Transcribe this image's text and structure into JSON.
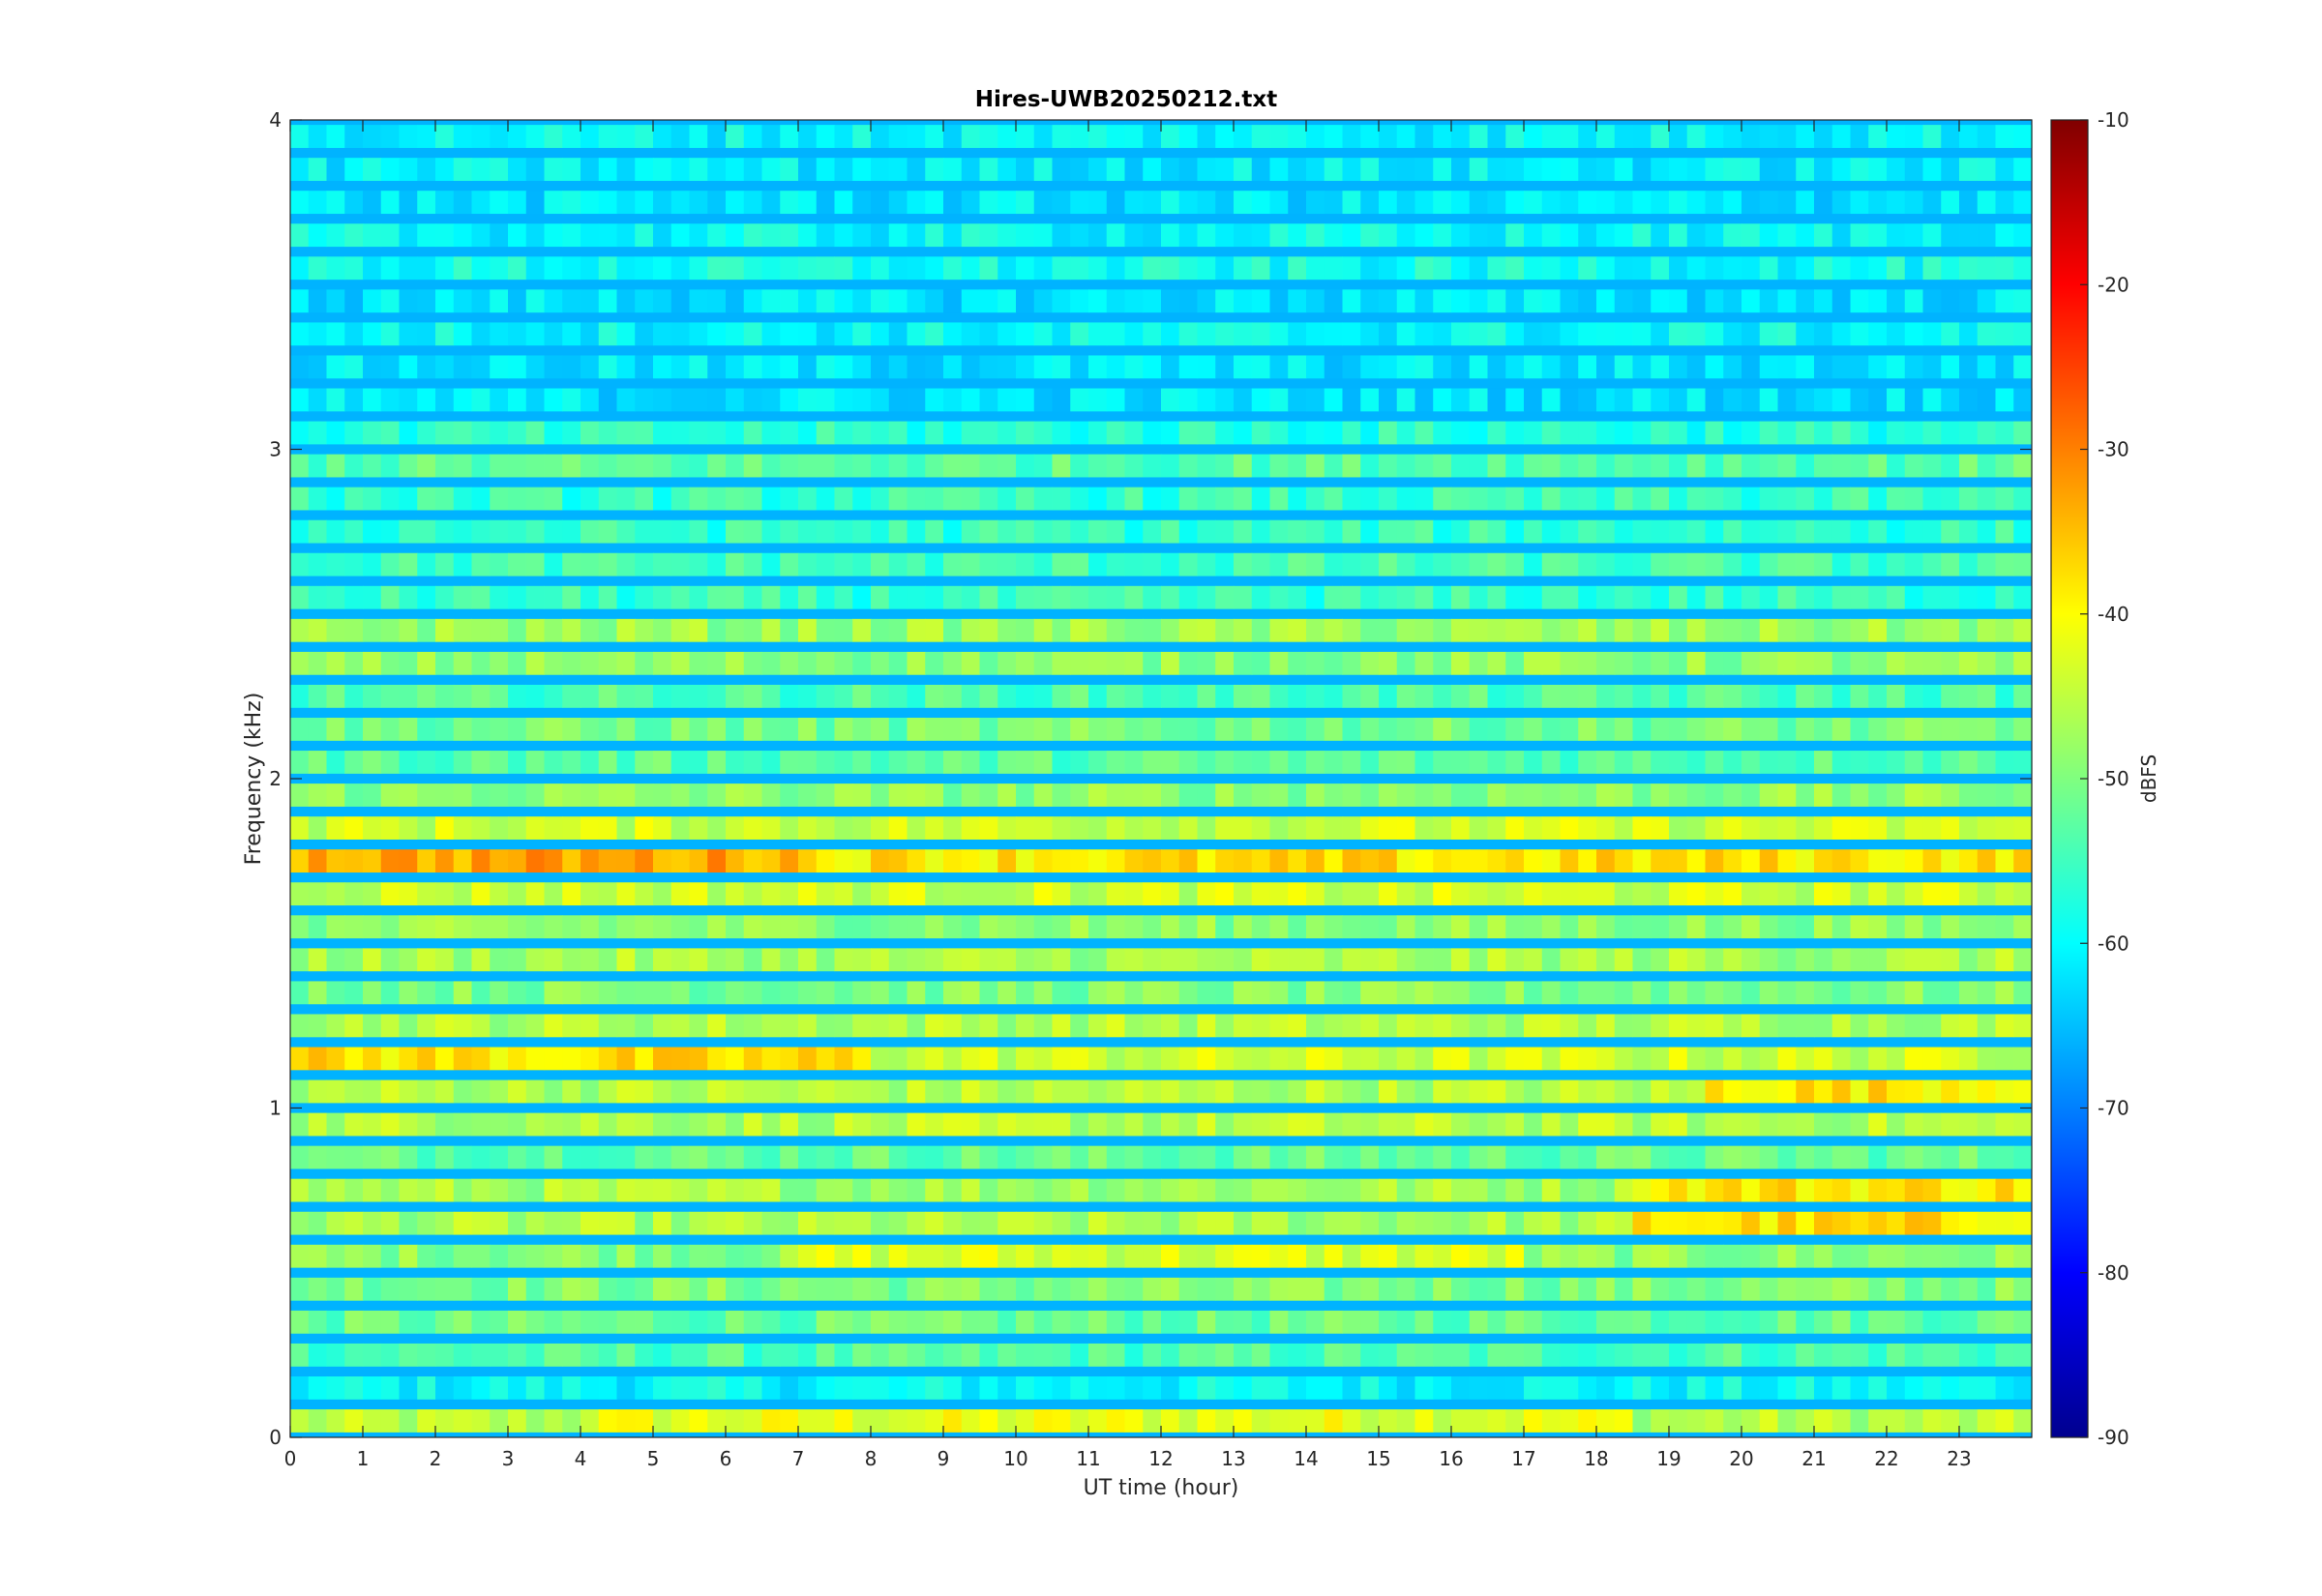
{
  "chart_data": {
    "type": "heatmap",
    "title": "Hires-UWB20250212.txt",
    "xlabel": "UT time (hour)",
    "ylabel": "Frequency (kHz)",
    "xlim": [
      0,
      24
    ],
    "ylim": [
      0,
      4
    ],
    "x_ticks": [
      0,
      1,
      2,
      3,
      4,
      5,
      6,
      7,
      8,
      9,
      10,
      11,
      12,
      13,
      14,
      15,
      16,
      17,
      18,
      19,
      20,
      21,
      22,
      23
    ],
    "y_ticks": [
      0,
      1,
      2,
      3,
      4
    ],
    "colorbar": {
      "label": "dBFS",
      "colormap": "jet",
      "range": [
        -90,
        -10
      ],
      "ticks": [
        -10,
        -20,
        -30,
        -40,
        -50,
        -60,
        -70,
        -80,
        -90
      ]
    },
    "bands_khz": [
      {
        "f": 0.05,
        "level": -46,
        "t_start": 4,
        "t_end": 18.5,
        "peak": -42
      },
      {
        "f": 0.15,
        "level": -60
      },
      {
        "f": 0.25,
        "level": -54
      },
      {
        "f": 0.35,
        "level": -52
      },
      {
        "f": 0.45,
        "level": -50
      },
      {
        "f": 0.55,
        "level": -49,
        "t_start": 7,
        "t_end": 17,
        "peak": -43
      },
      {
        "f": 0.65,
        "level": -47,
        "t_start": 18.5,
        "t_end": 24,
        "peak": -38
      },
      {
        "f": 0.75,
        "level": -47,
        "t_start": 18.5,
        "t_end": 24,
        "peak": -38
      },
      {
        "f": 0.85,
        "level": -52
      },
      {
        "f": 0.95,
        "level": -46
      },
      {
        "f": 1.05,
        "level": -46,
        "t_start": 19.5,
        "t_end": 24,
        "peak": -38
      },
      {
        "f": 1.15,
        "level": -44,
        "t_start": 0,
        "t_end": 8,
        "peak": -38
      },
      {
        "f": 1.25,
        "level": -46
      },
      {
        "f": 1.35,
        "level": -50
      },
      {
        "f": 1.45,
        "level": -47
      },
      {
        "f": 1.55,
        "level": -49
      },
      {
        "f": 1.65,
        "level": -44
      },
      {
        "f": 1.75,
        "level": -38,
        "t_start": 0,
        "t_end": 7,
        "peak": -33
      },
      {
        "f": 1.85,
        "level": -44
      },
      {
        "f": 1.95,
        "level": -49
      },
      {
        "f": 2.05,
        "level": -53
      },
      {
        "f": 2.15,
        "level": -51
      },
      {
        "f": 2.25,
        "level": -54
      },
      {
        "f": 2.35,
        "level": -49
      },
      {
        "f": 2.45,
        "level": -48
      },
      {
        "f": 2.55,
        "level": -56
      },
      {
        "f": 2.65,
        "level": -55
      },
      {
        "f": 2.75,
        "level": -56
      },
      {
        "f": 2.85,
        "level": -56
      },
      {
        "f": 2.95,
        "level": -53
      },
      {
        "f": 3.05,
        "level": -57
      },
      {
        "f": 3.15,
        "level": -62
      },
      {
        "f": 3.25,
        "level": -62
      },
      {
        "f": 3.35,
        "level": -60
      },
      {
        "f": 3.45,
        "level": -62
      },
      {
        "f": 3.55,
        "level": -59
      },
      {
        "f": 3.65,
        "level": -60
      },
      {
        "f": 3.75,
        "level": -62
      },
      {
        "f": 3.85,
        "level": -61
      },
      {
        "f": 3.95,
        "level": -60
      }
    ],
    "background_level": -66
  }
}
